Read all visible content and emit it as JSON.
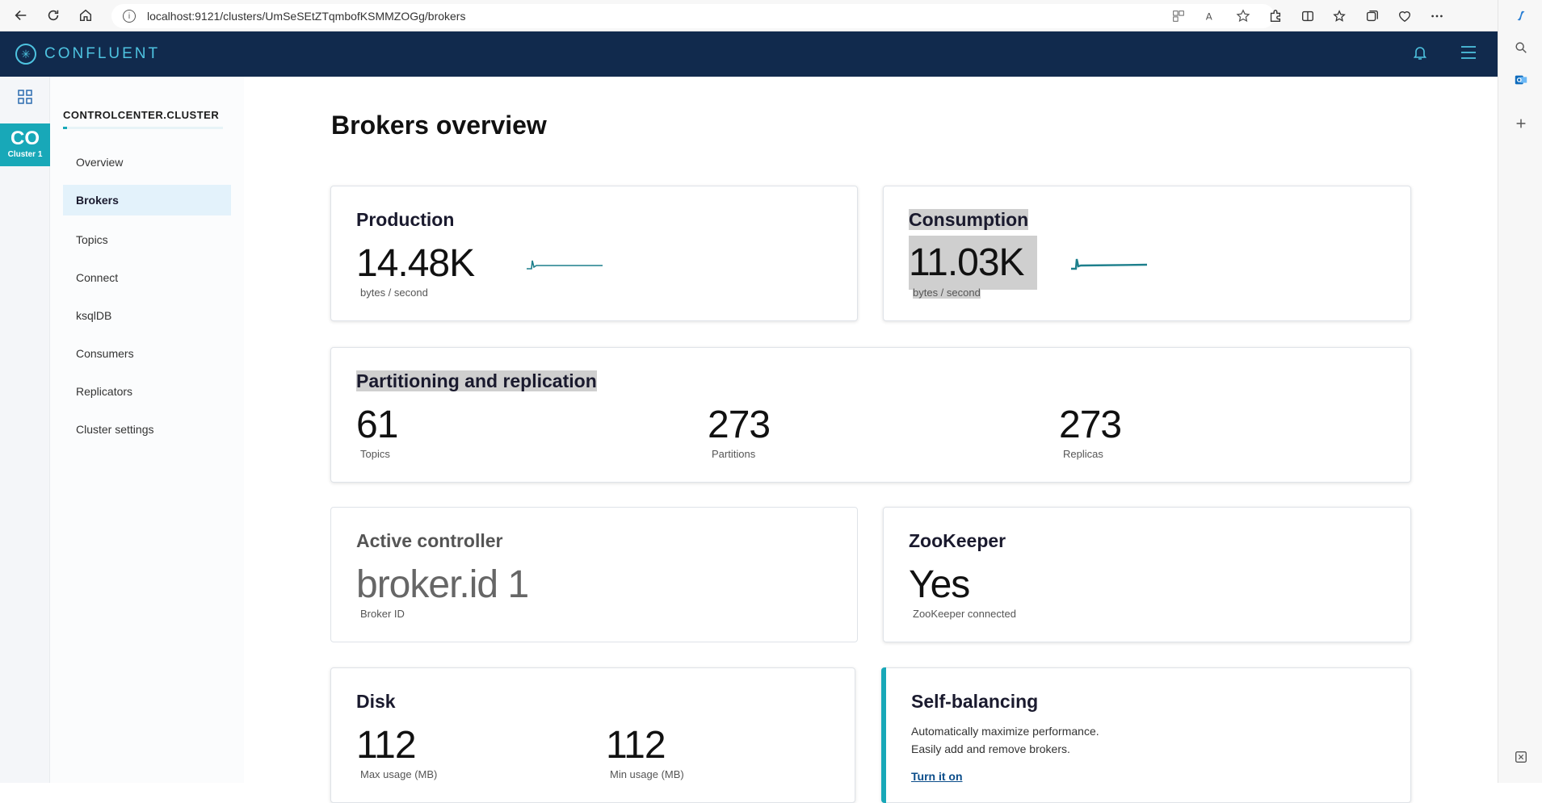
{
  "browser": {
    "url": "localhost:9121/clusters/UmSeSEtZTqmbofKSMMZOGg/brokers"
  },
  "app": {
    "brand": "CONFLUENT"
  },
  "rail": {
    "cluster_abbr": "CO",
    "cluster_name": "Cluster 1"
  },
  "sidebar": {
    "cluster_title": "CONTROLCENTER.CLUSTER",
    "items": [
      {
        "label": "Overview"
      },
      {
        "label": "Brokers"
      },
      {
        "label": "Topics"
      },
      {
        "label": "Connect"
      },
      {
        "label": "ksqlDB"
      },
      {
        "label": "Consumers"
      },
      {
        "label": "Replicators"
      },
      {
        "label": "Cluster settings"
      }
    ],
    "active": "Brokers"
  },
  "main": {
    "title": "Brokers overview",
    "production": {
      "title": "Production",
      "value": "14.48K",
      "unit": "bytes / second"
    },
    "consumption": {
      "title": "Consumption",
      "value": "11.03K",
      "unit": "bytes / second"
    },
    "partitioning": {
      "title": "Partitioning and replication",
      "topics": {
        "value": "61",
        "label": "Topics"
      },
      "partitions": {
        "value": "273",
        "label": "Partitions"
      },
      "replicas": {
        "value": "273",
        "label": "Replicas"
      }
    },
    "controller": {
      "title": "Active controller",
      "value": "broker.id 1",
      "label": "Broker ID"
    },
    "zookeeper": {
      "title": "ZooKeeper",
      "value": "Yes",
      "label": "ZooKeeper connected"
    },
    "disk": {
      "title": "Disk",
      "max": {
        "value": "112",
        "label": "Max usage (MB)"
      },
      "min": {
        "value": "112",
        "label": "Min usage (MB)"
      }
    },
    "self_balancing": {
      "title": "Self-balancing",
      "line1": "Automatically maximize performance.",
      "line2": "Easily add and remove brokers.",
      "link": "Turn it on"
    }
  },
  "colors": {
    "topbar": "#112a4d",
    "accent": "#18a8b8",
    "sparkline": "#1d7f8c"
  }
}
